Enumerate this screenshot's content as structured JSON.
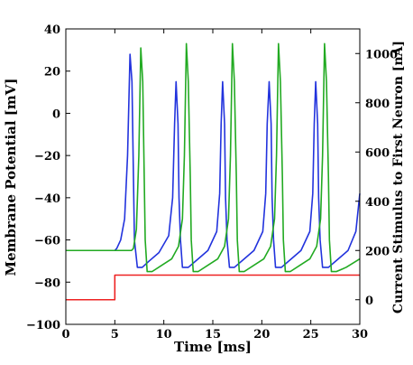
{
  "chart_data": {
    "type": "line",
    "xlabel": "Time [ms]",
    "ylabel_left": "Membrane Potential [mV]",
    "ylabel_right": "Current Stimulus to First Neuron [nA]",
    "xlim": [
      0,
      30
    ],
    "ylim_left": [
      -100,
      40
    ],
    "ylim_right": [
      -100,
      1100
    ],
    "x_ticks": [
      "0",
      "5",
      "10",
      "15",
      "20",
      "25",
      "30"
    ],
    "y_left_ticks": [
      "40",
      "20",
      "0",
      "−20",
      "−40",
      "−60",
      "−80",
      "−100"
    ],
    "y_right_ticks": [
      "1000",
      "800",
      "600",
      "400",
      "200",
      "0"
    ],
    "grid": false,
    "series": [
      {
        "color": "#2233dd",
        "axis": "left",
        "points": [
          [
            0,
            -65
          ],
          [
            5,
            -65
          ],
          [
            5.2,
            -64
          ],
          [
            5.6,
            -60
          ],
          [
            6.0,
            -50
          ],
          [
            6.3,
            -20
          ],
          [
            6.55,
            28
          ],
          [
            6.75,
            15
          ],
          [
            6.9,
            -30
          ],
          [
            7.0,
            -60
          ],
          [
            7.3,
            -73
          ],
          [
            7.8,
            -73
          ],
          [
            8.5,
            -70
          ],
          [
            9.5,
            -66
          ],
          [
            10.5,
            -58
          ],
          [
            10.9,
            -40
          ],
          [
            11.1,
            -5
          ],
          [
            11.25,
            15
          ],
          [
            11.45,
            -5
          ],
          [
            11.55,
            -40
          ],
          [
            11.7,
            -60
          ],
          [
            11.9,
            -73
          ],
          [
            12.5,
            -73
          ],
          [
            13.5,
            -69
          ],
          [
            14.5,
            -65
          ],
          [
            15.4,
            -56
          ],
          [
            15.7,
            -38
          ],
          [
            15.85,
            -5
          ],
          [
            16.0,
            15
          ],
          [
            16.2,
            -5
          ],
          [
            16.3,
            -40
          ],
          [
            16.45,
            -60
          ],
          [
            16.7,
            -73
          ],
          [
            17.2,
            -73
          ],
          [
            18.2,
            -69
          ],
          [
            19.2,
            -65
          ],
          [
            20.1,
            -56
          ],
          [
            20.4,
            -38
          ],
          [
            20.55,
            -5
          ],
          [
            20.75,
            15
          ],
          [
            20.95,
            -5
          ],
          [
            21.05,
            -40
          ],
          [
            21.2,
            -60
          ],
          [
            21.4,
            -73
          ],
          [
            22.0,
            -73
          ],
          [
            23.0,
            -69
          ],
          [
            24.0,
            -65
          ],
          [
            24.9,
            -56
          ],
          [
            25.2,
            -38
          ],
          [
            25.35,
            -5
          ],
          [
            25.5,
            15
          ],
          [
            25.7,
            -5
          ],
          [
            25.8,
            -40
          ],
          [
            25.95,
            -60
          ],
          [
            26.2,
            -73
          ],
          [
            26.8,
            -73
          ],
          [
            27.8,
            -69
          ],
          [
            28.8,
            -65
          ],
          [
            29.6,
            -56
          ],
          [
            30,
            -38
          ]
        ]
      },
      {
        "color": "#22aa22",
        "axis": "left",
        "points": [
          [
            0,
            -65
          ],
          [
            6.7,
            -65
          ],
          [
            6.9,
            -64
          ],
          [
            7.2,
            -55
          ],
          [
            7.45,
            -20
          ],
          [
            7.65,
            31
          ],
          [
            7.85,
            15
          ],
          [
            8.0,
            -30
          ],
          [
            8.1,
            -60
          ],
          [
            8.3,
            -75
          ],
          [
            8.8,
            -75
          ],
          [
            9.8,
            -72
          ],
          [
            10.8,
            -69
          ],
          [
            11.5,
            -63
          ],
          [
            11.9,
            -50
          ],
          [
            12.1,
            -20
          ],
          [
            12.3,
            33
          ],
          [
            12.5,
            15
          ],
          [
            12.7,
            -30
          ],
          [
            12.8,
            -60
          ],
          [
            13.0,
            -75
          ],
          [
            13.5,
            -75
          ],
          [
            14.5,
            -72
          ],
          [
            15.5,
            -69
          ],
          [
            16.2,
            -63
          ],
          [
            16.6,
            -50
          ],
          [
            16.8,
            -20
          ],
          [
            17.0,
            33
          ],
          [
            17.2,
            15
          ],
          [
            17.4,
            -30
          ],
          [
            17.5,
            -60
          ],
          [
            17.7,
            -75
          ],
          [
            18.2,
            -75
          ],
          [
            19.2,
            -72
          ],
          [
            20.2,
            -69
          ],
          [
            20.9,
            -63
          ],
          [
            21.3,
            -50
          ],
          [
            21.5,
            -20
          ],
          [
            21.7,
            33
          ],
          [
            21.9,
            15
          ],
          [
            22.1,
            -30
          ],
          [
            22.2,
            -60
          ],
          [
            22.4,
            -75
          ],
          [
            22.9,
            -75
          ],
          [
            23.9,
            -72
          ],
          [
            24.9,
            -69
          ],
          [
            25.6,
            -63
          ],
          [
            26.0,
            -50
          ],
          [
            26.2,
            -20
          ],
          [
            26.4,
            33
          ],
          [
            26.6,
            15
          ],
          [
            26.8,
            -30
          ],
          [
            26.9,
            -60
          ],
          [
            27.1,
            -75
          ],
          [
            27.6,
            -75
          ],
          [
            28.6,
            -73
          ],
          [
            30,
            -69
          ]
        ]
      },
      {
        "color": "#ee2222",
        "axis": "right",
        "points": [
          [
            0,
            0
          ],
          [
            5,
            0
          ],
          [
            5,
            100
          ],
          [
            30,
            100
          ]
        ]
      }
    ]
  }
}
